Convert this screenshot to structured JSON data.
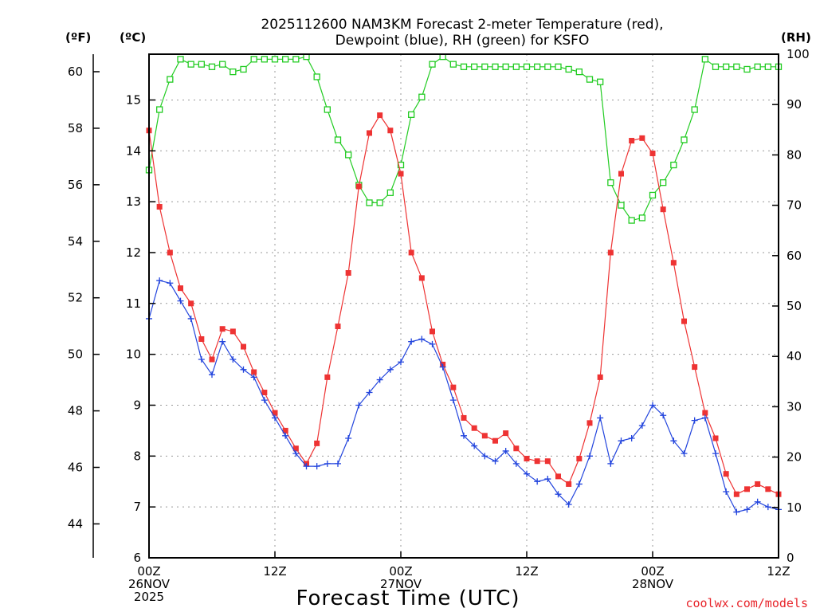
{
  "title_line1": "2025112600 NAM3KM Forecast 2-meter Temperature (red),",
  "title_line2": "Dewpoint (blue), RH (green) for KSFO",
  "unit_f": "(ºF)",
  "unit_c": "(ºC)",
  "unit_rh": "(RH)",
  "xlabel": "Forecast Time (UTC)",
  "credit": "coolwx.com/models",
  "colors": {
    "temp": "#ee3333",
    "dewp": "#2244dd",
    "rh": "#22cc22",
    "grid": "#999999"
  },
  "chart_data": {
    "type": "line",
    "x_hours": [
      0,
      1,
      2,
      3,
      4,
      5,
      6,
      7,
      8,
      9,
      10,
      11,
      12,
      13,
      14,
      15,
      16,
      17,
      18,
      19,
      20,
      21,
      22,
      23,
      24,
      25,
      26,
      27,
      28,
      29,
      30,
      31,
      32,
      33,
      34,
      35,
      36,
      37,
      38,
      39,
      40,
      41,
      42,
      43,
      44,
      45,
      46,
      47,
      48,
      49,
      50,
      51,
      52,
      53,
      54,
      55,
      56,
      57,
      58,
      59,
      60
    ],
    "xlim": [
      0,
      60
    ],
    "x_ticks": [
      {
        "hour": 0,
        "line1": "00Z",
        "line2": "26NOV",
        "line3": "2025"
      },
      {
        "hour": 12,
        "line1": "12Z",
        "line2": "",
        "line3": ""
      },
      {
        "hour": 24,
        "line1": "00Z",
        "line2": "27NOV",
        "line3": ""
      },
      {
        "hour": 36,
        "line1": "12Z",
        "line2": "",
        "line3": ""
      },
      {
        "hour": 48,
        "line1": "00Z",
        "line2": "28NOV",
        "line3": ""
      },
      {
        "hour": 60,
        "line1": "12Z",
        "line2": "",
        "line3": ""
      }
    ],
    "y_left_c": {
      "label": "(ºC)",
      "range": [
        6,
        15.9
      ],
      "ticks": [
        6,
        7,
        8,
        9,
        10,
        11,
        12,
        13,
        14,
        15
      ]
    },
    "y_left_f": {
      "label": "(ºF)",
      "ticks": [
        44,
        46,
        48,
        50,
        52,
        54,
        56,
        58,
        60
      ]
    },
    "y_right_rh": {
      "label": "(RH)",
      "range": [
        0,
        100
      ],
      "ticks": [
        0,
        10,
        20,
        30,
        40,
        50,
        60,
        70,
        80,
        90,
        100
      ]
    },
    "series": [
      {
        "name": "Temperature",
        "axis": "c",
        "color": "#ee3333",
        "marker": "filled-square",
        "values": [
          14.4,
          12.9,
          12.0,
          11.3,
          11.0,
          10.3,
          9.9,
          10.5,
          10.45,
          10.15,
          9.65,
          9.25,
          8.85,
          8.5,
          8.15,
          7.85,
          8.25,
          9.55,
          10.55,
          11.6,
          13.3,
          14.35,
          14.7,
          14.4,
          13.55,
          12.0,
          11.5,
          10.45,
          9.8,
          9.35,
          8.75,
          8.55,
          8.4,
          8.3,
          8.45,
          8.15,
          7.95,
          7.9,
          7.9,
          7.6,
          7.45,
          7.95,
          8.65,
          9.55,
          12.0,
          13.55,
          14.2,
          14.25,
          13.95,
          12.85,
          11.8,
          10.65,
          9.75,
          8.85,
          8.35,
          7.65,
          7.25,
          7.35,
          7.45,
          7.35,
          7.25
        ]
      },
      {
        "name": "Dewpoint",
        "axis": "c",
        "color": "#2244dd",
        "marker": "plus",
        "values": [
          10.7,
          11.45,
          11.4,
          11.05,
          10.7,
          9.9,
          9.6,
          10.25,
          9.9,
          9.7,
          9.55,
          9.1,
          8.75,
          8.4,
          8.05,
          7.8,
          7.8,
          7.85,
          7.85,
          8.35,
          9.0,
          9.25,
          9.5,
          9.7,
          9.85,
          10.25,
          10.3,
          10.2,
          9.75,
          9.1,
          8.4,
          8.2,
          8.0,
          7.9,
          8.1,
          7.85,
          7.65,
          7.5,
          7.55,
          7.25,
          7.05,
          7.45,
          8.0,
          8.75,
          7.85,
          8.3,
          8.35,
          8.6,
          9.0,
          8.8,
          8.3,
          8.05,
          8.7,
          8.75,
          8.05,
          7.3,
          6.9,
          6.95,
          7.1,
          7.0,
          6.95
        ]
      },
      {
        "name": "RH",
        "axis": "rh",
        "color": "#22cc22",
        "marker": "open-square",
        "values": [
          77,
          89,
          95,
          99,
          98,
          98,
          97.5,
          98,
          96.5,
          97,
          99,
          99,
          99,
          99,
          99,
          99.5,
          95.5,
          89,
          83,
          80,
          74,
          70.5,
          70.5,
          72.5,
          78,
          88,
          91.5,
          98,
          99.5,
          98,
          97.5,
          97.5,
          97.5,
          97.5,
          97.5,
          97.5,
          97.5,
          97.5,
          97.5,
          97.5,
          97,
          96.5,
          95,
          94.5,
          74.5,
          70,
          67,
          67.5,
          72,
          74.5,
          78,
          83,
          89,
          99,
          97.5,
          97.5,
          97.5,
          97,
          97.5,
          97.5,
          97.5
        ]
      }
    ]
  }
}
